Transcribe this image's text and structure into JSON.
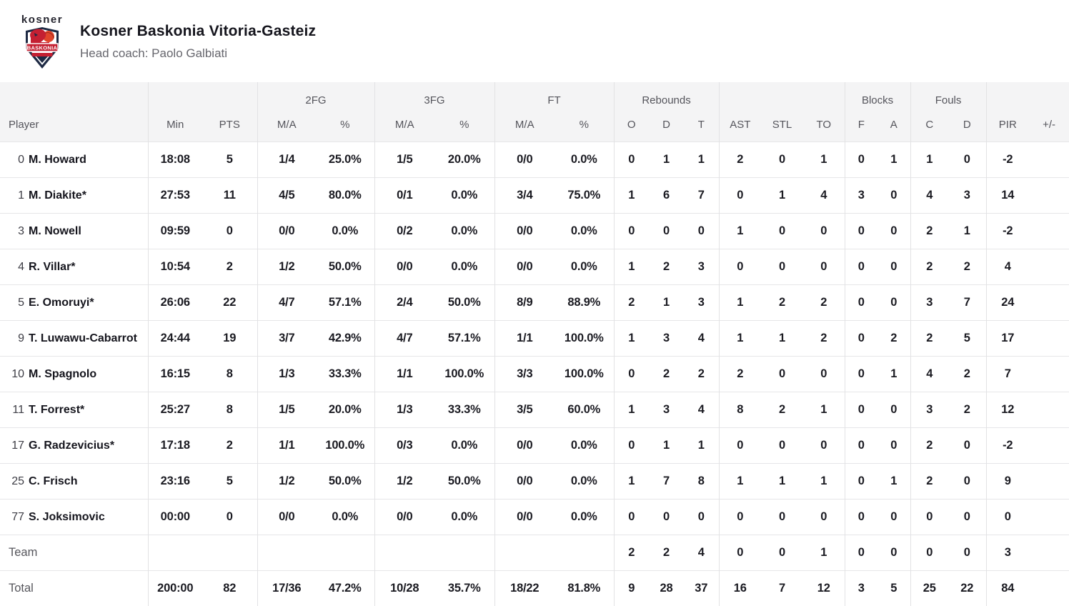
{
  "colors": {
    "header_bg": "#f4f4f5",
    "border": "#e4e4e6",
    "text_dark": "#1b1b22",
    "text_gray": "#56565c",
    "club_red": "#c42032",
    "club_navy": "#1e2a44"
  },
  "header": {
    "team_name": "Kosner Baskonia Vitoria-Gasteiz",
    "coach_line": "Head coach: Paolo Galbiati",
    "logo_wordmark": "kosner",
    "logo_shield_text": "BASKONIA"
  },
  "table": {
    "group_headers": {
      "fg2": "2FG",
      "fg3": "3FG",
      "ft": "FT",
      "rebounds": "Rebounds",
      "blocks": "Blocks",
      "fouls": "Fouls"
    },
    "columns": {
      "player": "Player",
      "min": "Min",
      "pts": "PTS",
      "ma_2fg": "M/A",
      "pct_2fg": "%",
      "ma_3fg": "M/A",
      "pct_3fg": "%",
      "ma_ft": "M/A",
      "pct_ft": "%",
      "reb_o": "O",
      "reb_d": "D",
      "reb_t": "T",
      "ast": "AST",
      "stl": "STL",
      "to": "TO",
      "blk_f": "F",
      "blk_a": "A",
      "foul_c": "C",
      "foul_d": "D",
      "pir": "PIR",
      "plusminus": "+/-"
    },
    "rows": [
      {
        "type": "player",
        "number": "0",
        "name": "M. Howard",
        "stats": [
          "18:08",
          "5",
          "1/4",
          "25.0%",
          "1/5",
          "20.0%",
          "0/0",
          "0.0%",
          "0",
          "1",
          "1",
          "2",
          "0",
          "1",
          "0",
          "1",
          "1",
          "0",
          "-2",
          ""
        ]
      },
      {
        "type": "player",
        "number": "1",
        "name": "M. Diakite*",
        "stats": [
          "27:53",
          "11",
          "4/5",
          "80.0%",
          "0/1",
          "0.0%",
          "3/4",
          "75.0%",
          "1",
          "6",
          "7",
          "0",
          "1",
          "4",
          "3",
          "0",
          "4",
          "3",
          "14",
          ""
        ]
      },
      {
        "type": "player",
        "number": "3",
        "name": "M. Nowell",
        "stats": [
          "09:59",
          "0",
          "0/0",
          "0.0%",
          "0/2",
          "0.0%",
          "0/0",
          "0.0%",
          "0",
          "0",
          "0",
          "1",
          "0",
          "0",
          "0",
          "0",
          "2",
          "1",
          "-2",
          ""
        ]
      },
      {
        "type": "player",
        "number": "4",
        "name": "R. Villar*",
        "stats": [
          "10:54",
          "2",
          "1/2",
          "50.0%",
          "0/0",
          "0.0%",
          "0/0",
          "0.0%",
          "1",
          "2",
          "3",
          "0",
          "0",
          "0",
          "0",
          "0",
          "2",
          "2",
          "4",
          ""
        ]
      },
      {
        "type": "player",
        "number": "5",
        "name": "E. Omoruyi*",
        "stats": [
          "26:06",
          "22",
          "4/7",
          "57.1%",
          "2/4",
          "50.0%",
          "8/9",
          "88.9%",
          "2",
          "1",
          "3",
          "1",
          "2",
          "2",
          "0",
          "0",
          "3",
          "7",
          "24",
          ""
        ]
      },
      {
        "type": "player",
        "number": "9",
        "name": "T. Luwawu-Cabarrot",
        "stats": [
          "24:44",
          "19",
          "3/7",
          "42.9%",
          "4/7",
          "57.1%",
          "1/1",
          "100.0%",
          "1",
          "3",
          "4",
          "1",
          "1",
          "2",
          "0",
          "2",
          "2",
          "5",
          "17",
          ""
        ]
      },
      {
        "type": "player",
        "number": "10",
        "name": "M. Spagnolo",
        "stats": [
          "16:15",
          "8",
          "1/3",
          "33.3%",
          "1/1",
          "100.0%",
          "3/3",
          "100.0%",
          "0",
          "2",
          "2",
          "2",
          "0",
          "0",
          "0",
          "1",
          "4",
          "2",
          "7",
          ""
        ]
      },
      {
        "type": "player",
        "number": "11",
        "name": "T. Forrest*",
        "stats": [
          "25:27",
          "8",
          "1/5",
          "20.0%",
          "1/3",
          "33.3%",
          "3/5",
          "60.0%",
          "1",
          "3",
          "4",
          "8",
          "2",
          "1",
          "0",
          "0",
          "3",
          "2",
          "12",
          ""
        ]
      },
      {
        "type": "player",
        "number": "17",
        "name": "G. Radzevicius*",
        "stats": [
          "17:18",
          "2",
          "1/1",
          "100.0%",
          "0/3",
          "0.0%",
          "0/0",
          "0.0%",
          "0",
          "1",
          "1",
          "0",
          "0",
          "0",
          "0",
          "0",
          "2",
          "0",
          "-2",
          ""
        ]
      },
      {
        "type": "player",
        "number": "25",
        "name": "C. Frisch",
        "stats": [
          "23:16",
          "5",
          "1/2",
          "50.0%",
          "1/2",
          "50.0%",
          "0/0",
          "0.0%",
          "1",
          "7",
          "8",
          "1",
          "1",
          "1",
          "0",
          "1",
          "2",
          "0",
          "9",
          ""
        ]
      },
      {
        "type": "player",
        "number": "77",
        "name": "S. Joksimovic",
        "stats": [
          "00:00",
          "0",
          "0/0",
          "0.0%",
          "0/0",
          "0.0%",
          "0/0",
          "0.0%",
          "0",
          "0",
          "0",
          "0",
          "0",
          "0",
          "0",
          "0",
          "0",
          "0",
          "0",
          ""
        ]
      },
      {
        "type": "team",
        "label": "Team",
        "stats": [
          "",
          "",
          "",
          "",
          "",
          "",
          "",
          "",
          "2",
          "2",
          "4",
          "0",
          "0",
          "1",
          "0",
          "0",
          "0",
          "0",
          "3",
          ""
        ]
      },
      {
        "type": "total",
        "label": "Total",
        "stats": [
          "200:00",
          "82",
          "17/36",
          "47.2%",
          "10/28",
          "35.7%",
          "18/22",
          "81.8%",
          "9",
          "28",
          "37",
          "16",
          "7",
          "12",
          "3",
          "5",
          "25",
          "22",
          "84",
          ""
        ]
      }
    ]
  }
}
